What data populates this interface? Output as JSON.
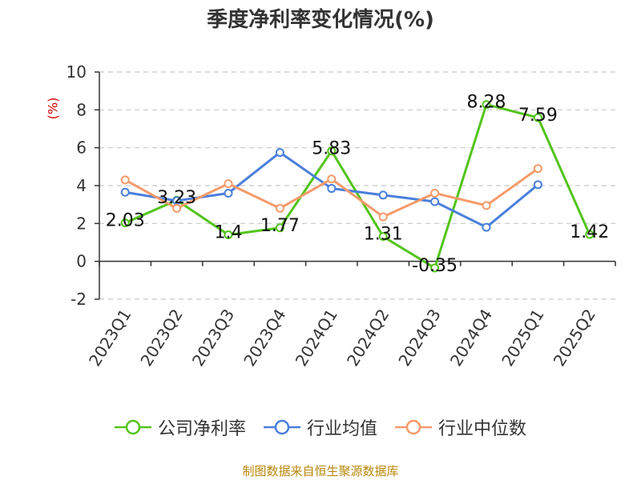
{
  "chart_data": {
    "type": "line",
    "title": "季度净利率变化情况(%)",
    "ylabel": "(%)",
    "ylim": [
      -2,
      10
    ],
    "yticks": [
      -2,
      0,
      2,
      4,
      6,
      8,
      10
    ],
    "grid": true,
    "legend_position": "bottom",
    "categories": [
      "2023Q1",
      "2023Q2",
      "2023Q3",
      "2023Q4",
      "2024Q1",
      "2024Q2",
      "2024Q3",
      "2024Q4",
      "2025Q1",
      "2025Q2"
    ],
    "series": [
      {
        "name": "公司净利率",
        "color": "#52c41a",
        "values": [
          2.03,
          3.23,
          1.4,
          1.77,
          5.83,
          1.31,
          -0.35,
          8.28,
          7.59,
          1.42
        ],
        "labels": [
          "2.03",
          "3.23",
          "1.4",
          "1.77",
          "5.83",
          "1.31",
          "-0.35",
          "8.28",
          "7.59",
          "1.42"
        ]
      },
      {
        "name": "行业均值",
        "color": "#4a7fdb",
        "values": [
          3.65,
          3.2,
          3.6,
          5.75,
          3.85,
          3.5,
          3.15,
          1.8,
          4.05,
          null
        ]
      },
      {
        "name": "行业中位数",
        "color": "#f59a6a",
        "values": [
          4.3,
          2.8,
          4.1,
          2.8,
          4.35,
          2.35,
          3.6,
          2.95,
          4.9,
          null
        ]
      }
    ]
  },
  "source": "制图数据来自恒生聚源数据库"
}
